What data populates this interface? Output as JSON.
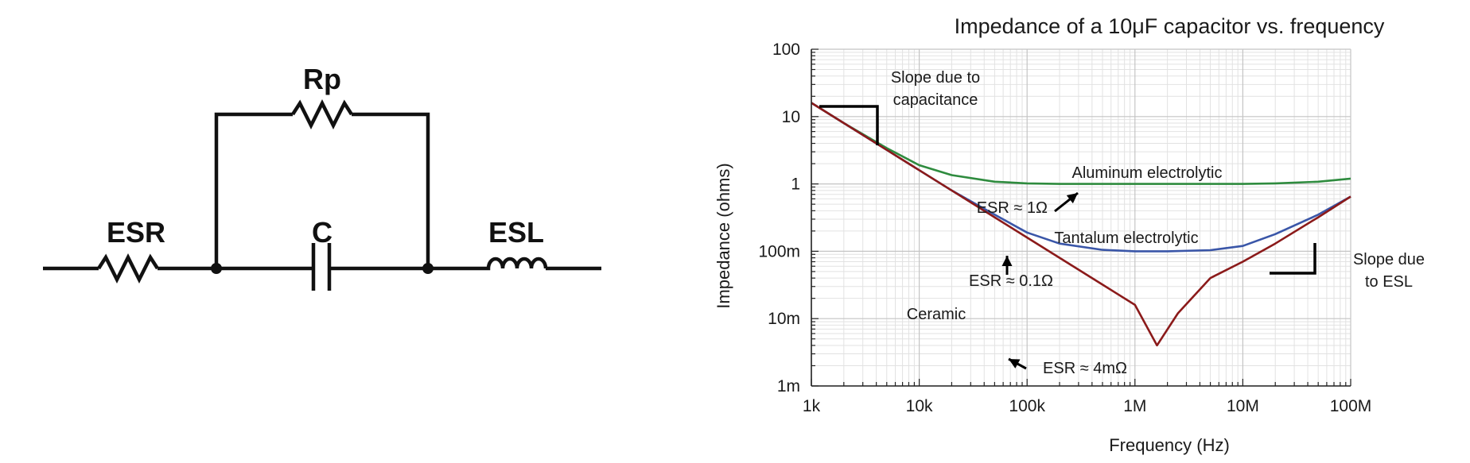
{
  "schematic": {
    "labels": {
      "esr": "ESR",
      "rp": "Rp",
      "c": "C",
      "esl": "ESL"
    }
  },
  "chart_data": {
    "type": "line",
    "title": "Impedance of a 10μF capacitor vs. frequency",
    "xlabel": "Frequency (Hz)",
    "ylabel": "Impedance (ohms)",
    "x_scale": "log",
    "y_scale": "log",
    "xlim": [
      1000,
      100000000
    ],
    "ylim": [
      0.001,
      100
    ],
    "grid": true,
    "xtick_values": [
      1000,
      10000,
      100000,
      1000000,
      10000000,
      100000000
    ],
    "xtick_labels": [
      "1k",
      "10k",
      "100k",
      "1M",
      "10M",
      "100M"
    ],
    "ytick_values": [
      0.001,
      0.01,
      0.1,
      1,
      10,
      100
    ],
    "ytick_labels": [
      "1m",
      "10m",
      "100m",
      "1",
      "10",
      "100"
    ],
    "series": [
      {
        "name": "Aluminum electrolytic",
        "color": "#2e8b3e",
        "x": [
          1000,
          2000,
          5000,
          10000,
          20000,
          50000,
          100000,
          200000,
          500000,
          1000000,
          2000000,
          5000000,
          10000000,
          20000000,
          50000000,
          100000000
        ],
        "y": [
          16,
          8,
          3.4,
          1.9,
          1.35,
          1.08,
          1.02,
          1.0,
          1.0,
          1.0,
          1.0,
          1.0,
          1.0,
          1.02,
          1.08,
          1.2
        ]
      },
      {
        "name": "Tantalum electrolytic",
        "color": "#3a56a8",
        "x": [
          1000,
          2000,
          5000,
          10000,
          20000,
          50000,
          100000,
          200000,
          500000,
          1000000,
          2000000,
          5000000,
          10000000,
          20000000,
          50000000,
          100000000
        ],
        "y": [
          16,
          8,
          3.2,
          1.6,
          0.8,
          0.35,
          0.19,
          0.13,
          0.105,
          0.1,
          0.1,
          0.104,
          0.12,
          0.18,
          0.35,
          0.65
        ]
      },
      {
        "name": "Ceramic",
        "color": "#8b1a1a",
        "x": [
          1000,
          2000,
          5000,
          10000,
          20000,
          50000,
          100000,
          200000,
          500000,
          1000000,
          1600000,
          2500000,
          5000000,
          10000000,
          20000000,
          50000000,
          100000000
        ],
        "y": [
          16,
          8,
          3.2,
          1.6,
          0.8,
          0.32,
          0.16,
          0.08,
          0.032,
          0.016,
          0.004,
          0.012,
          0.04,
          0.07,
          0.13,
          0.32,
          0.65
        ]
      }
    ],
    "annotations": [
      {
        "id": "slope_cap",
        "text_lines": [
          "Slope due to",
          "capacitance"
        ]
      },
      {
        "id": "al_label",
        "text_lines": [
          "Aluminum electrolytic"
        ]
      },
      {
        "id": "esr_al",
        "text_lines": [
          "ESR ≈ 1Ω"
        ]
      },
      {
        "id": "ta_label",
        "text_lines": [
          "Tantalum electrolytic"
        ]
      },
      {
        "id": "esr_ta",
        "text_lines": [
          "ESR ≈ 0.1Ω"
        ]
      },
      {
        "id": "slope_esl",
        "text_lines": [
          "Slope due",
          "to ESL"
        ]
      },
      {
        "id": "ceramic_label",
        "text_lines": [
          "Ceramic"
        ]
      },
      {
        "id": "esr_ceramic",
        "text_lines": [
          "ESR ≈ 4mΩ"
        ]
      }
    ]
  }
}
